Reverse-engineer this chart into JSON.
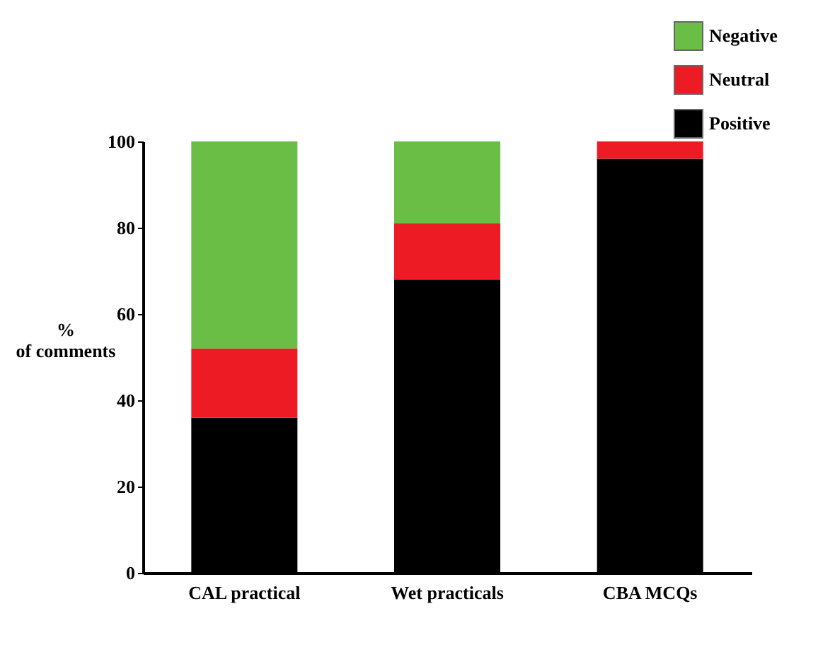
{
  "chart_data": {
    "type": "bar",
    "stacked": true,
    "ylabel": "%\nof comments",
    "categories": [
      "CAL practical",
      "Wet practicals",
      "CBA MCQs"
    ],
    "series": [
      {
        "name": "Positive",
        "color": "#000000",
        "values": [
          36,
          68,
          96
        ]
      },
      {
        "name": "Neutral",
        "color": "#ed1c24",
        "values": [
          16,
          13,
          4
        ]
      },
      {
        "name": "Negative",
        "color": "#6abd45",
        "values": [
          48,
          19,
          0
        ]
      }
    ],
    "ylim": [
      0,
      100
    ],
    "yticks": [
      0,
      20,
      40,
      60,
      80,
      100
    ],
    "grid": false,
    "legend": "top right"
  }
}
